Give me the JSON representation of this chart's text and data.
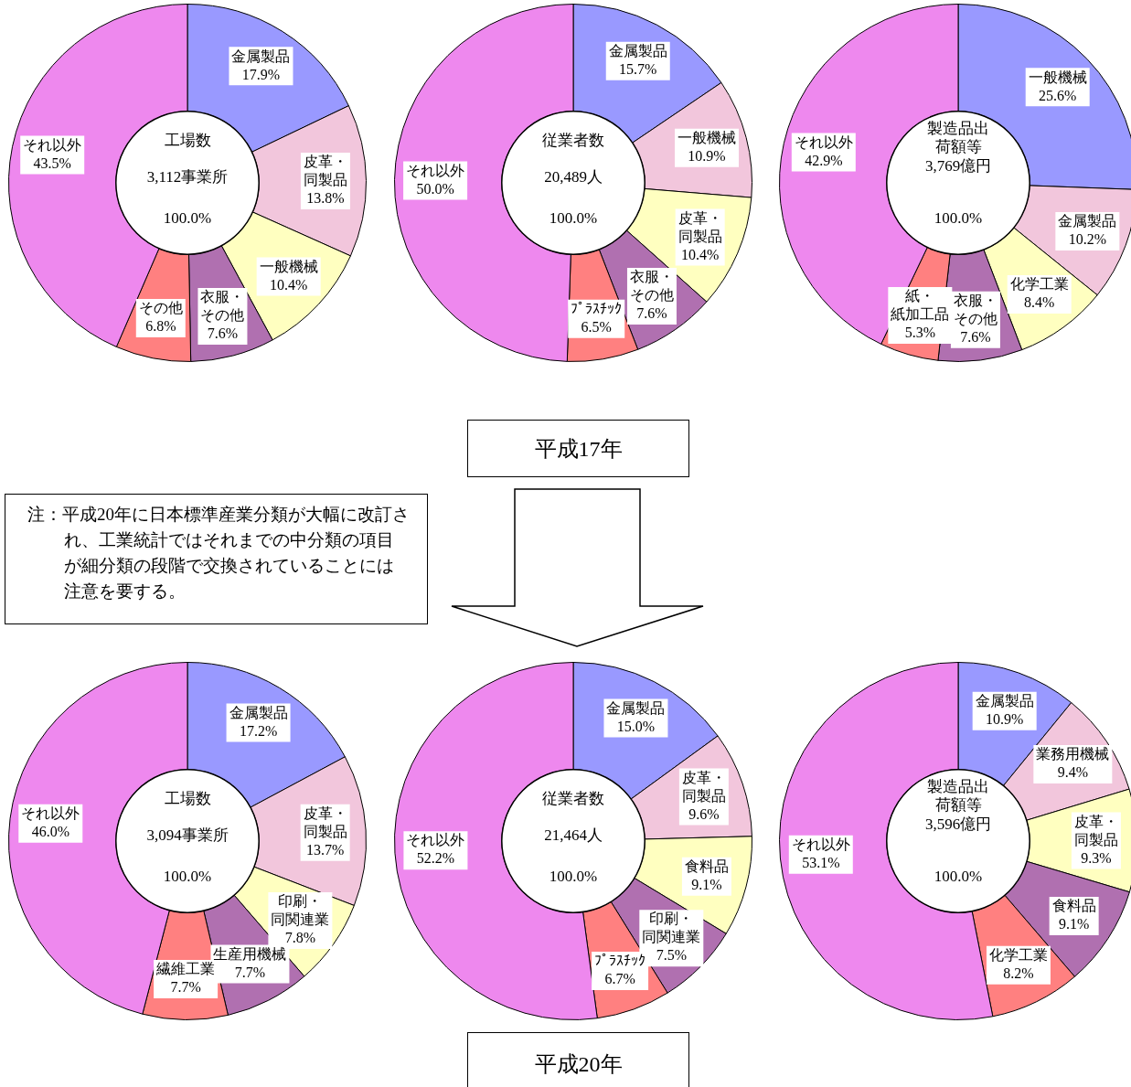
{
  "chart_data": [
    {
      "type": "donut",
      "title": "工場数",
      "subtitle": "3,112事業所",
      "annotations": [
        "100.0%"
      ],
      "categories": [
        "金属製品",
        "皮革・同製品",
        "一般機械",
        "衣服・その他",
        "その他",
        "それ以外"
      ],
      "values": [
        17.9,
        13.8,
        10.4,
        7.6,
        6.8,
        43.5
      ],
      "value_labels": [
        "17.9%",
        "13.8%",
        "10.4%",
        "7.6%",
        "6.8%",
        "43.5%"
      ],
      "colors": [
        "#9999ff",
        "#f2c6dc",
        "#ffffc0",
        "#b070b0",
        "#ff8080",
        "#ee88ee"
      ]
    },
    {
      "type": "donut",
      "title": "従業者数",
      "subtitle": "20,489人",
      "annotations": [
        "100.0%"
      ],
      "categories": [
        "金属製品",
        "一般機械",
        "皮革・同製品",
        "衣服・その他",
        "ﾌﾟﾗｽﾁｯｸ",
        "それ以外"
      ],
      "values": [
        15.7,
        10.9,
        10.4,
        7.6,
        6.5,
        50.0
      ],
      "value_labels": [
        "15.7%",
        "10.9%",
        "10.4%",
        "7.6%",
        "6.5%",
        "50.0%"
      ],
      "colors": [
        "#9999ff",
        "#f2c6dc",
        "#ffffc0",
        "#b070b0",
        "#ff8080",
        "#ee88ee"
      ]
    },
    {
      "type": "donut",
      "title": "製造品出荷額等",
      "subtitle": "3,769億円",
      "annotations": [
        "100.0%"
      ],
      "categories": [
        "一般機械",
        "金属製品",
        "化学工業",
        "衣服・その他",
        "紙・紙加工品",
        "それ以外"
      ],
      "values": [
        25.6,
        10.2,
        8.4,
        7.6,
        5.3,
        42.9
      ],
      "value_labels": [
        "25.6%",
        "10.2%",
        "8.4%",
        "7.6%",
        "5.3%",
        "42.9%"
      ],
      "colors": [
        "#9999ff",
        "#f2c6dc",
        "#ffffc0",
        "#b070b0",
        "#ff8080",
        "#ee88ee"
      ]
    },
    {
      "type": "other",
      "annotations": [
        "平成17年",
        "注：平成20年に日本標準産業分類が大幅に改訂され、工業統計ではそれまでの中分類の項目が細分類の段階で交換されていることには注意を要する。"
      ]
    },
    {
      "type": "donut",
      "title": "工場数",
      "subtitle": "3,094事業所",
      "annotations": [
        "100.0%"
      ],
      "categories": [
        "金属製品",
        "皮革・同製品",
        "印刷・同関連業",
        "生産用機械",
        "繊維工業",
        "それ以外"
      ],
      "values": [
        17.2,
        13.7,
        7.8,
        7.7,
        7.7,
        46.0
      ],
      "value_labels": [
        "17.2%",
        "13.7%",
        "7.8%",
        "7.7%",
        "7.7%",
        "46.0%"
      ],
      "colors": [
        "#9999ff",
        "#f2c6dc",
        "#ffffc0",
        "#b070b0",
        "#ff8080",
        "#ee88ee"
      ]
    },
    {
      "type": "donut",
      "title": "従業者数",
      "subtitle": "21,464人",
      "annotations": [
        "100.0%"
      ],
      "categories": [
        "金属製品",
        "皮革・同製品",
        "食料品",
        "印刷・同関連業",
        "ﾌﾟﾗｽﾁｯｸ",
        "それ以外"
      ],
      "values": [
        15.0,
        9.6,
        9.1,
        7.5,
        6.7,
        52.2
      ],
      "value_labels": [
        "15.0%",
        "9.6%",
        "9.1%",
        "7.5%",
        "6.7%",
        "52.2%"
      ],
      "colors": [
        "#9999ff",
        "#f2c6dc",
        "#ffffc0",
        "#b070b0",
        "#ff8080",
        "#ee88ee"
      ]
    },
    {
      "type": "donut",
      "title": "製造品出荷額等",
      "subtitle": "3,596億円",
      "annotations": [
        "100.0%"
      ],
      "categories": [
        "金属製品",
        "業務用機械",
        "皮革・同製品",
        "食料品",
        "化学工業",
        "それ以外"
      ],
      "values": [
        10.9,
        9.4,
        9.3,
        9.1,
        8.2,
        53.1
      ],
      "value_labels": [
        "10.9%",
        "9.4%",
        "9.3%",
        "9.1%",
        "8.2%",
        "53.1%"
      ],
      "colors": [
        "#9999ff",
        "#f2c6dc",
        "#ffffc0",
        "#b070b0",
        "#ff8080",
        "#ee88ee"
      ]
    },
    {
      "type": "other",
      "annotations": [
        "平成20年"
      ]
    }
  ]
}
